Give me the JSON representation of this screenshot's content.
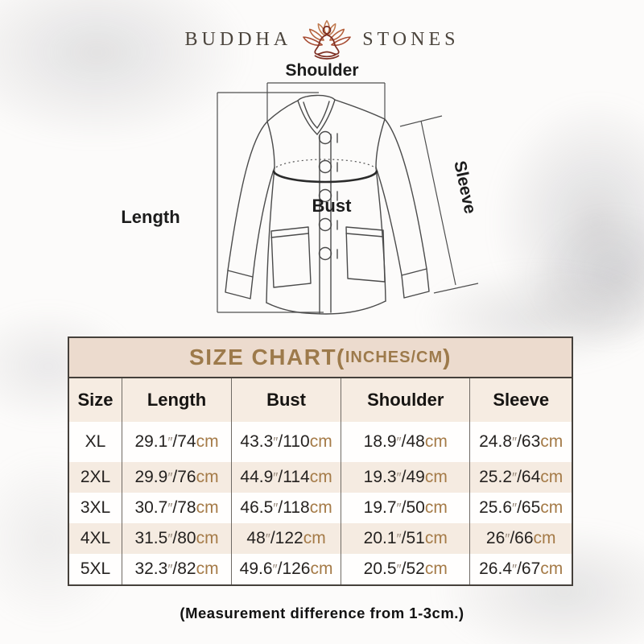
{
  "brand": {
    "name_left": "BUDDHA",
    "name_right": "STONES",
    "logo_icon": "lotus-meditation-icon",
    "text_color": "#4b443c",
    "lotus_dark": "#7e2f22",
    "lotus_light": "#c07a4f"
  },
  "diagram": {
    "shoulder_label": "Shoulder",
    "length_label": "Length",
    "bust_label": "Bust",
    "sleeve_label": "Sleeve"
  },
  "size_chart": {
    "title_main": "SIZE CHART",
    "title_paren_open": "(",
    "title_unit": "INCHES/CM",
    "title_paren_close": ")",
    "title_color": "#9d7a4b",
    "title_bg": "#ecdbce",
    "header_bg": "#f6ece2",
    "stripe_bg": "#f5ebe1",
    "cm_color": "#a57b48",
    "unit_inch": "″",
    "unit_cm": "cm",
    "columns": [
      "Size",
      "Length",
      "Bust",
      "Shoulder",
      "Sleeve"
    ],
    "rows": [
      {
        "size": "XL",
        "length_in": "29.1",
        "length_cm": "74",
        "bust_in": "43.3",
        "bust_cm": "110",
        "shoulder_in": "18.9",
        "shoulder_cm": "48",
        "sleeve_in": "24.8",
        "sleeve_cm": "63"
      },
      {
        "size": "2XL",
        "length_in": "29.9",
        "length_cm": "76",
        "bust_in": "44.9",
        "bust_cm": "114",
        "shoulder_in": "19.3",
        "shoulder_cm": "49",
        "sleeve_in": "25.2",
        "sleeve_cm": "64"
      },
      {
        "size": "3XL",
        "length_in": "30.7",
        "length_cm": "78",
        "bust_in": "46.5",
        "bust_cm": "118",
        "shoulder_in": "19.7",
        "shoulder_cm": "50",
        "sleeve_in": "25.6",
        "sleeve_cm": "65"
      },
      {
        "size": "4XL",
        "length_in": "31.5",
        "length_cm": "80",
        "bust_in": "48",
        "bust_cm": "122",
        "shoulder_in": "20.1",
        "shoulder_cm": "51",
        "sleeve_in": "26",
        "sleeve_cm": "66"
      },
      {
        "size": "5XL",
        "length_in": "32.3",
        "length_cm": "82",
        "bust_in": "49.6",
        "bust_cm": "126",
        "shoulder_in": "20.5",
        "shoulder_cm": "52",
        "sleeve_in": "26.4",
        "sleeve_cm": "67"
      }
    ]
  },
  "footer": {
    "note": "(Measurement difference from 1-3cm.)"
  }
}
